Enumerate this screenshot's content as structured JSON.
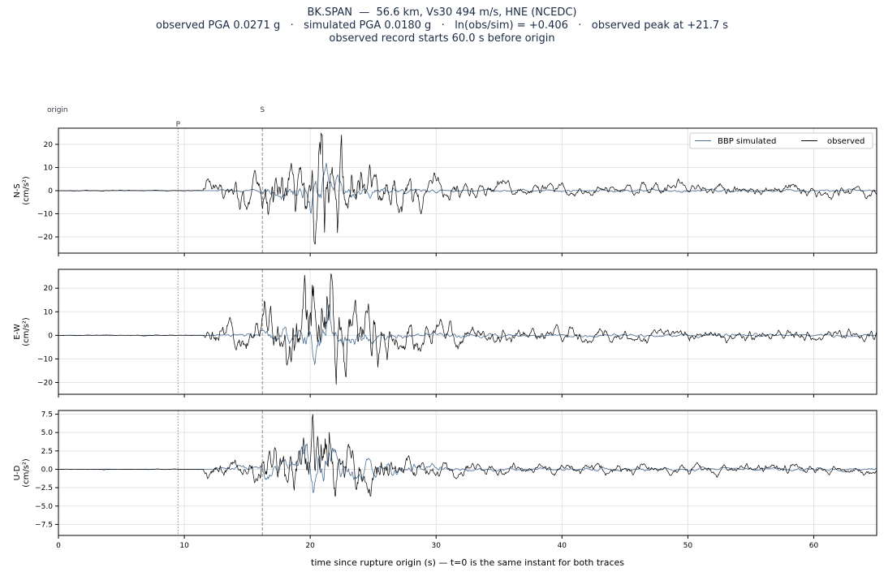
{
  "title": {
    "line1": "BK.SPAN  —  56.6 km, Vs30 494 m/s, HNE (NCEDC)",
    "line2": "observed PGA 0.0271 g   ·   simulated PGA 0.0180 g   ·   ln(obs/sim) = +0.406   ·   observed peak at +21.7 s",
    "line3": "observed record starts 60.0 s before origin"
  },
  "chart_data": {
    "type": "line",
    "xlabel": "time since rupture origin (s)   —   t=0 is the same instant for both traces",
    "xlim": [
      0,
      65
    ],
    "xticks": [
      0,
      10,
      20,
      30,
      40,
      50,
      60
    ],
    "grid": true,
    "legend": {
      "entries": [
        "BBP simulated",
        "observed"
      ],
      "placement": "top-right",
      "ncol": 2
    },
    "colors": {
      "simulated": "#4a6f96",
      "observed": "#000000",
      "grid": "#e3e3e3",
      "markers": "#8a8a8a"
    },
    "markers": [
      {
        "label": "origin",
        "t": 0,
        "style": "none"
      },
      {
        "label": "P",
        "t": 9.5,
        "style": "dotted"
      },
      {
        "label": "S",
        "t": 16.2,
        "style": "dashed"
      }
    ],
    "panels": [
      {
        "component": "N-S",
        "ylabel": "N-S\n(cm/s²)",
        "ylim": [
          -27,
          27
        ],
        "yticks": [
          -20,
          -10,
          0,
          10,
          20
        ],
        "ytick_labels": [
          "−20",
          "−10",
          "0",
          "10",
          "20"
        ],
        "series": [
          {
            "name": "BBP simulated",
            "key": "sim",
            "amp": 12,
            "seed": 11
          },
          {
            "name": "observed",
            "key": "obs",
            "amp": 25,
            "seed": 23
          }
        ]
      },
      {
        "component": "E-W",
        "ylabel": "E-W\n(cm/s²)",
        "ylim": [
          -25,
          28
        ],
        "yticks": [
          -20,
          -10,
          0,
          10,
          20
        ],
        "ytick_labels": [
          "−20",
          "−10",
          "0",
          "10",
          "20"
        ],
        "series": [
          {
            "name": "BBP simulated",
            "key": "sim",
            "amp": 13,
            "seed": 37
          },
          {
            "name": "observed",
            "key": "obs",
            "amp": 26,
            "seed": 51
          }
        ]
      },
      {
        "component": "U-D",
        "ylabel": "U-D\n(cm/s²)",
        "ylim": [
          -9,
          8
        ],
        "yticks": [
          -7.5,
          -5.0,
          -2.5,
          0.0,
          2.5,
          5.0,
          7.5
        ],
        "ytick_labels": [
          "−7.5",
          "−5.0",
          "−2.5",
          "0.0",
          "2.5",
          "5.0",
          "7.5"
        ],
        "series": [
          {
            "name": "BBP simulated",
            "key": "sim",
            "amp": 3.5,
            "seed": 67
          },
          {
            "name": "observed",
            "key": "obs",
            "amp": 7.5,
            "seed": 79
          }
        ]
      }
    ]
  }
}
